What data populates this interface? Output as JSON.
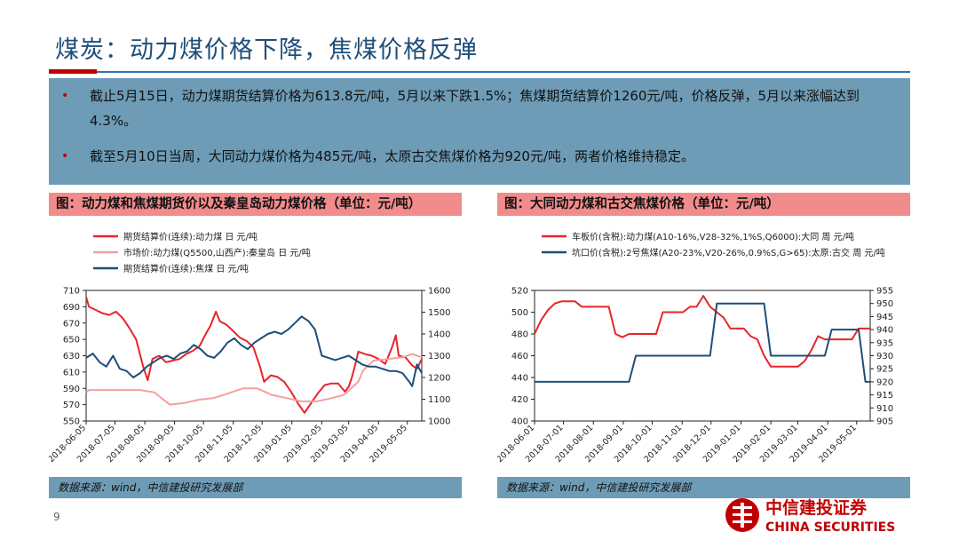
{
  "title": "煤炭：动力煤价格下降，焦煤价格反弹",
  "bullets": [
    {
      "text": "截止5月15日，动力煤期货结算价格为613.8元/吨，5月以来下跌1.5%；焦煤期货结算价1260元/吨，价格反弹，5月以来涨幅达到4.3%。"
    },
    {
      "text": "截至5月10日当周，大同动力煤价格为485元/吨，太原古交焦煤价格为920元/吨，两者价格维持稳定。"
    }
  ],
  "source_note": "数据来源：wind，中信建投研究发展部",
  "page_number": "9",
  "logo": {
    "cn": "中信建投证券",
    "en": "CHINA SECURITIES"
  },
  "colors": {
    "red": "#e8242a",
    "pink": "#f2a0a0",
    "navy": "#1f4e79",
    "accent": "#c00000",
    "panel": "#6e9cb6"
  },
  "chart_data": [
    {
      "type": "line",
      "caption": "图：动力煤和焦煤期货价以及秦皇岛动力煤价格（单位：元/吨）",
      "x_ticks": [
        "2018-06-05",
        "2018-07-05",
        "2018-08-05",
        "2018-09-05",
        "2018-10-05",
        "2018-11-05",
        "2018-12-05",
        "2019-01-05",
        "2019-02-05",
        "2019-03-05",
        "2019-04-05",
        "2019-05-05"
      ],
      "x_range": [
        "2018-06-05",
        "2019-05-20"
      ],
      "y_left": {
        "range": [
          550,
          710
        ],
        "ticks": [
          "550",
          "570",
          "590",
          "610",
          "630",
          "650",
          "670",
          "690",
          "710"
        ]
      },
      "y_right": {
        "range": [
          1000,
          1600
        ],
        "ticks": [
          "1000",
          "1100",
          "1200",
          "1300",
          "1400",
          "1500",
          "1600"
        ]
      },
      "legend_position": "top",
      "series": [
        {
          "name": "期货结算价(连续):动力煤 日 元/吨",
          "axis": "left",
          "color": "#e8242a",
          "points": [
            [
              "2018-06-05",
              702
            ],
            [
              "2018-06-08",
              690
            ],
            [
              "2018-06-15",
              686
            ],
            [
              "2018-06-22",
              682
            ],
            [
              "2018-06-29",
              680
            ],
            [
              "2018-07-06",
              684
            ],
            [
              "2018-07-13",
              676
            ],
            [
              "2018-07-20",
              664
            ],
            [
              "2018-07-27",
              650
            ],
            [
              "2018-08-03",
              618
            ],
            [
              "2018-08-08",
              600
            ],
            [
              "2018-08-13",
              626
            ],
            [
              "2018-08-20",
              630
            ],
            [
              "2018-08-27",
              622
            ],
            [
              "2018-09-03",
              624
            ],
            [
              "2018-09-10",
              626
            ],
            [
              "2018-09-17",
              632
            ],
            [
              "2018-09-24",
              636
            ],
            [
              "2018-10-01",
              642
            ],
            [
              "2018-10-08",
              658
            ],
            [
              "2018-10-12",
              666
            ],
            [
              "2018-10-18",
              684
            ],
            [
              "2018-10-22",
              672
            ],
            [
              "2018-10-29",
              668
            ],
            [
              "2018-11-05",
              660
            ],
            [
              "2018-11-12",
              652
            ],
            [
              "2018-11-19",
              648
            ],
            [
              "2018-11-26",
              640
            ],
            [
              "2018-12-03",
              616
            ],
            [
              "2018-12-07",
              598
            ],
            [
              "2018-12-14",
              606
            ],
            [
              "2018-12-21",
              604
            ],
            [
              "2018-12-28",
              598
            ],
            [
              "2019-01-04",
              586
            ],
            [
              "2019-01-11",
              572
            ],
            [
              "2019-01-18",
              560
            ],
            [
              "2019-01-25",
              572
            ],
            [
              "2019-02-01",
              584
            ],
            [
              "2019-02-08",
              594
            ],
            [
              "2019-02-15",
              596
            ],
            [
              "2019-02-22",
              596
            ],
            [
              "2019-03-01",
              586
            ],
            [
              "2019-03-05",
              592
            ],
            [
              "2019-03-08",
              602
            ],
            [
              "2019-03-12",
              620
            ],
            [
              "2019-03-15",
              635
            ],
            [
              "2019-03-22",
              632
            ],
            [
              "2019-03-29",
              630
            ],
            [
              "2019-04-05",
              626
            ],
            [
              "2019-04-12",
              620
            ],
            [
              "2019-04-19",
              640
            ],
            [
              "2019-04-23",
              655
            ],
            [
              "2019-04-26",
              630
            ],
            [
              "2019-05-03",
              628
            ],
            [
              "2019-05-10",
              618
            ],
            [
              "2019-05-15",
              614
            ],
            [
              "2019-05-20",
              626
            ]
          ]
        },
        {
          "name": "市场价:动力煤(Q5500,山西产):秦皇岛 日 元/吨",
          "axis": "left",
          "color": "#f2a0a0",
          "points": [
            [
              "2018-06-05",
              585
            ],
            [
              "2018-06-08",
              588
            ],
            [
              "2018-06-30",
              588
            ],
            [
              "2018-07-31",
              588
            ],
            [
              "2018-08-15",
              585
            ],
            [
              "2018-08-31",
              570
            ],
            [
              "2018-09-15",
              572
            ],
            [
              "2018-09-30",
              576
            ],
            [
              "2018-10-15",
              578
            ],
            [
              "2018-10-31",
              584
            ],
            [
              "2018-11-15",
              590
            ],
            [
              "2018-11-30",
              590
            ],
            [
              "2018-12-15",
              582
            ],
            [
              "2018-12-31",
              578
            ],
            [
              "2019-01-15",
              574
            ],
            [
              "2019-01-31",
              574
            ],
            [
              "2019-02-15",
              578
            ],
            [
              "2019-02-28",
              582
            ],
            [
              "2019-03-15",
              598
            ],
            [
              "2019-03-20",
              612
            ],
            [
              "2019-03-31",
              624
            ],
            [
              "2019-04-15",
              626
            ],
            [
              "2019-04-30",
              628
            ],
            [
              "2019-05-10",
              632
            ],
            [
              "2019-05-20",
              628
            ]
          ]
        },
        {
          "name": "期货结算价(连续):焦煤 日 元/吨",
          "axis": "right",
          "color": "#1f4e79",
          "points": [
            [
              "2018-06-05",
              1290
            ],
            [
              "2018-06-12",
              1310
            ],
            [
              "2018-06-19",
              1270
            ],
            [
              "2018-06-26",
              1250
            ],
            [
              "2018-07-03",
              1300
            ],
            [
              "2018-07-10",
              1240
            ],
            [
              "2018-07-17",
              1230
            ],
            [
              "2018-07-24",
              1200
            ],
            [
              "2018-07-31",
              1220
            ],
            [
              "2018-08-07",
              1250
            ],
            [
              "2018-08-14",
              1270
            ],
            [
              "2018-08-21",
              1290
            ],
            [
              "2018-08-28",
              1300
            ],
            [
              "2018-09-04",
              1285
            ],
            [
              "2018-09-11",
              1310
            ],
            [
              "2018-09-18",
              1320
            ],
            [
              "2018-09-25",
              1350
            ],
            [
              "2018-10-02",
              1330
            ],
            [
              "2018-10-09",
              1300
            ],
            [
              "2018-10-16",
              1290
            ],
            [
              "2018-10-23",
              1320
            ],
            [
              "2018-10-30",
              1360
            ],
            [
              "2018-11-06",
              1380
            ],
            [
              "2018-11-13",
              1350
            ],
            [
              "2018-11-20",
              1330
            ],
            [
              "2018-11-27",
              1360
            ],
            [
              "2018-12-04",
              1380
            ],
            [
              "2018-12-11",
              1400
            ],
            [
              "2018-12-18",
              1410
            ],
            [
              "2018-12-25",
              1400
            ],
            [
              "2019-01-01",
              1420
            ],
            [
              "2019-01-08",
              1450
            ],
            [
              "2019-01-15",
              1480
            ],
            [
              "2019-01-22",
              1460
            ],
            [
              "2019-01-29",
              1420
            ],
            [
              "2019-02-05",
              1300
            ],
            [
              "2019-02-12",
              1290
            ],
            [
              "2019-02-19",
              1280
            ],
            [
              "2019-02-26",
              1290
            ],
            [
              "2019-03-05",
              1300
            ],
            [
              "2019-03-12",
              1280
            ],
            [
              "2019-03-19",
              1260
            ],
            [
              "2019-03-26",
              1250
            ],
            [
              "2019-04-02",
              1250
            ],
            [
              "2019-04-09",
              1240
            ],
            [
              "2019-04-16",
              1230
            ],
            [
              "2019-04-23",
              1230
            ],
            [
              "2019-04-30",
              1220
            ],
            [
              "2019-05-07",
              1180
            ],
            [
              "2019-05-10",
              1160
            ],
            [
              "2019-05-15",
              1260
            ],
            [
              "2019-05-20",
              1220
            ]
          ]
        }
      ]
    },
    {
      "type": "line",
      "caption": "图：大同动力煤和古交焦煤价格（单位：元/吨）",
      "x_ticks": [
        "2018-06-01",
        "2018-07-01",
        "2018-08-01",
        "2018-09-01",
        "2018-10-01",
        "2018-11-01",
        "2018-12-01",
        "2019-01-01",
        "2019-02-01",
        "2019-03-01",
        "2019-04-01",
        "2019-05-01"
      ],
      "x_range": [
        "2018-06-01",
        "2019-05-15"
      ],
      "y_left": {
        "range": [
          400,
          520
        ],
        "ticks": [
          "400",
          "420",
          "440",
          "460",
          "480",
          "500",
          "520"
        ]
      },
      "y_right": {
        "range": [
          905,
          955
        ],
        "ticks": [
          "905",
          "910",
          "915",
          "920",
          "925",
          "930",
          "935",
          "940",
          "945",
          "950",
          "955"
        ]
      },
      "legend_position": "top",
      "series": [
        {
          "name": "车板价(含税):动力煤(A10-16%,V28-32%,1%S,Q6000):大同 周 元/吨",
          "axis": "left",
          "color": "#e8242a",
          "points": [
            [
              "2018-06-01",
              480
            ],
            [
              "2018-06-08",
              493
            ],
            [
              "2018-06-15",
              502
            ],
            [
              "2018-06-22",
              508
            ],
            [
              "2018-06-29",
              510
            ],
            [
              "2018-07-13",
              510
            ],
            [
              "2018-07-20",
              505
            ],
            [
              "2018-08-17",
              505
            ],
            [
              "2018-08-24",
              480
            ],
            [
              "2018-08-31",
              477
            ],
            [
              "2018-09-07",
              480
            ],
            [
              "2018-10-05",
              480
            ],
            [
              "2018-10-12",
              500
            ],
            [
              "2018-11-02",
              500
            ],
            [
              "2018-11-09",
              505
            ],
            [
              "2018-11-16",
              505
            ],
            [
              "2018-11-23",
              515
            ],
            [
              "2018-11-30",
              505
            ],
            [
              "2018-12-07",
              500
            ],
            [
              "2018-12-14",
              495
            ],
            [
              "2018-12-21",
              485
            ],
            [
              "2019-01-04",
              485
            ],
            [
              "2019-01-11",
              478
            ],
            [
              "2019-01-18",
              475
            ],
            [
              "2019-01-25",
              460
            ],
            [
              "2019-02-01",
              450
            ],
            [
              "2019-03-01",
              450
            ],
            [
              "2019-03-08",
              455
            ],
            [
              "2019-03-15",
              465
            ],
            [
              "2019-03-22",
              478
            ],
            [
              "2019-03-29",
              475
            ],
            [
              "2019-04-26",
              475
            ],
            [
              "2019-05-03",
              485
            ],
            [
              "2019-05-15",
              485
            ]
          ]
        },
        {
          "name": "坑口价(含税):2号焦煤(A20-23%,V20-26%,0.9%S,G>65):太原:古交 周 元/吨",
          "axis": "right",
          "color": "#1f4e79",
          "points": [
            [
              "2018-06-01",
              920
            ],
            [
              "2018-09-07",
              920
            ],
            [
              "2018-09-14",
              930
            ],
            [
              "2018-11-30",
              930
            ],
            [
              "2018-12-07",
              950
            ],
            [
              "2019-01-25",
              950
            ],
            [
              "2019-02-01",
              930
            ],
            [
              "2019-03-29",
              930
            ],
            [
              "2019-04-05",
              940
            ],
            [
              "2019-05-03",
              940
            ],
            [
              "2019-05-10",
              920
            ],
            [
              "2019-05-15",
              920
            ]
          ]
        }
      ]
    }
  ]
}
